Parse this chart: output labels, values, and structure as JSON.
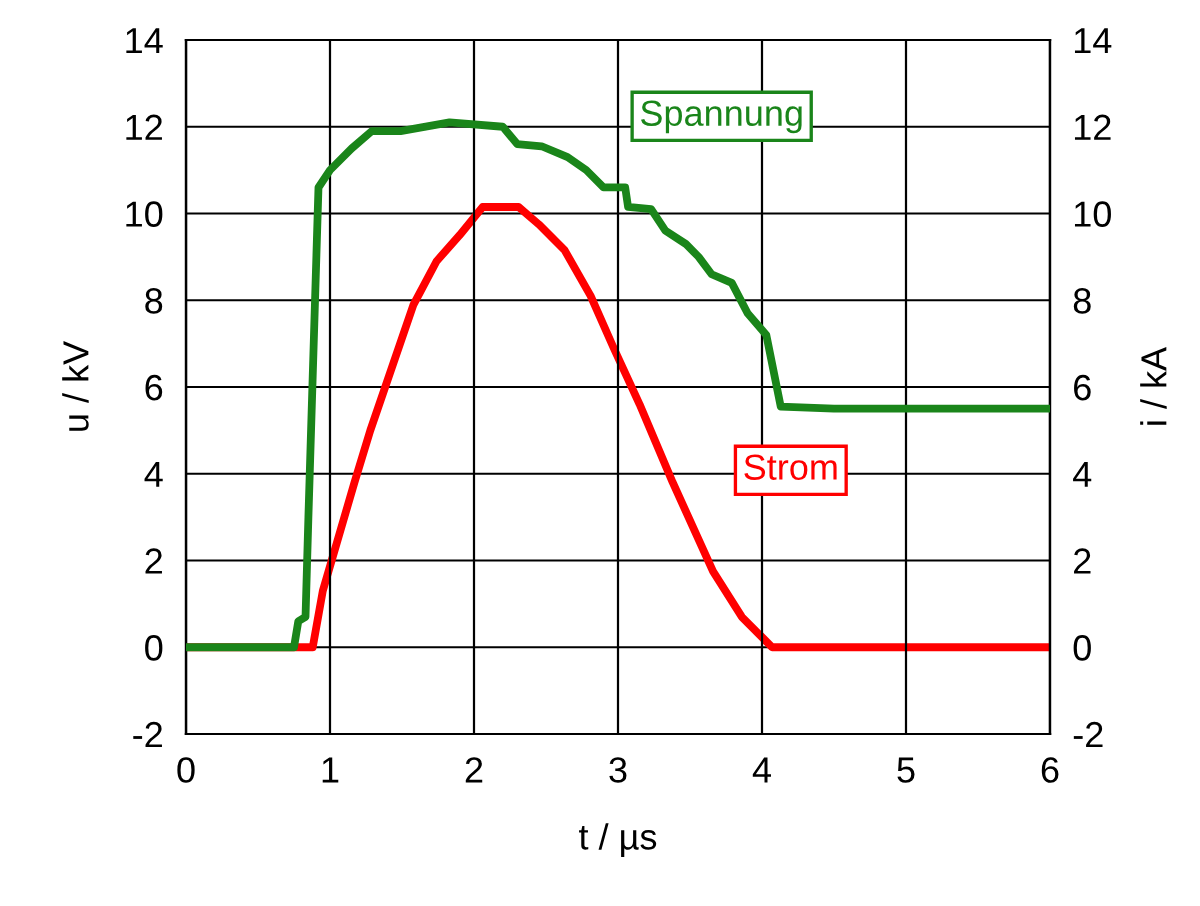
{
  "chart_data": {
    "type": "line",
    "xlabel": "t / µs",
    "ylabel": "u / kV",
    "y2label": "i / kA",
    "xlim": [
      0,
      6
    ],
    "xticks": [
      0,
      1,
      2,
      3,
      4,
      5,
      6
    ],
    "ylim": [
      -2,
      14
    ],
    "yticks": [
      -2,
      0,
      2,
      4,
      6,
      8,
      10,
      12,
      14
    ],
    "y2lim": [
      -2,
      14
    ],
    "y2ticks": [
      -2,
      0,
      2,
      4,
      6,
      8,
      10,
      12,
      14
    ],
    "grid": true,
    "legend": false,
    "marker": "none",
    "line_style": "solid",
    "series": [
      {
        "name": "Spannung",
        "color": "#1a851a",
        "x": [
          0,
          0.2,
          0.4,
          0.6,
          0.75,
          0.78,
          0.83,
          0.85,
          0.92,
          1.0,
          1.15,
          1.29,
          1.49,
          1.83,
          2.2,
          2.3,
          2.47,
          2.65,
          2.78,
          2.9,
          3.05,
          3.07,
          3.23,
          3.33,
          3.47,
          3.56,
          3.65,
          3.79,
          3.9,
          4.03,
          4.13,
          4.5,
          5.0,
          5.5,
          6.0
        ],
        "values": [
          0,
          0,
          0,
          0,
          0,
          0.6,
          0.7,
          3.0,
          10.6,
          11.0,
          11.5,
          11.9,
          11.9,
          12.1,
          12.0,
          11.6,
          11.55,
          11.3,
          11.0,
          10.6,
          10.6,
          10.15,
          10.1,
          9.6,
          9.3,
          9.0,
          8.6,
          8.4,
          7.7,
          7.2,
          5.55,
          5.5,
          5.5,
          5.5,
          5.5
        ]
      },
      {
        "name": "Strom",
        "color": "#ff0000",
        "axis": "y2",
        "x": [
          0,
          0.5,
          0.88,
          0.95,
          1.17,
          1.28,
          1.58,
          1.74,
          1.9,
          2.06,
          2.31,
          2.45,
          2.63,
          2.81,
          2.97,
          3.15,
          3.38,
          3.66,
          3.86,
          4.07,
          4.5,
          5.0,
          6.0
        ],
        "values": [
          0,
          0,
          0,
          1.3,
          3.8,
          5.0,
          7.9,
          8.9,
          9.5,
          10.15,
          10.15,
          9.75,
          9.15,
          8.1,
          6.9,
          5.6,
          3.8,
          1.75,
          0.7,
          0,
          0,
          0,
          0
        ]
      }
    ]
  }
}
